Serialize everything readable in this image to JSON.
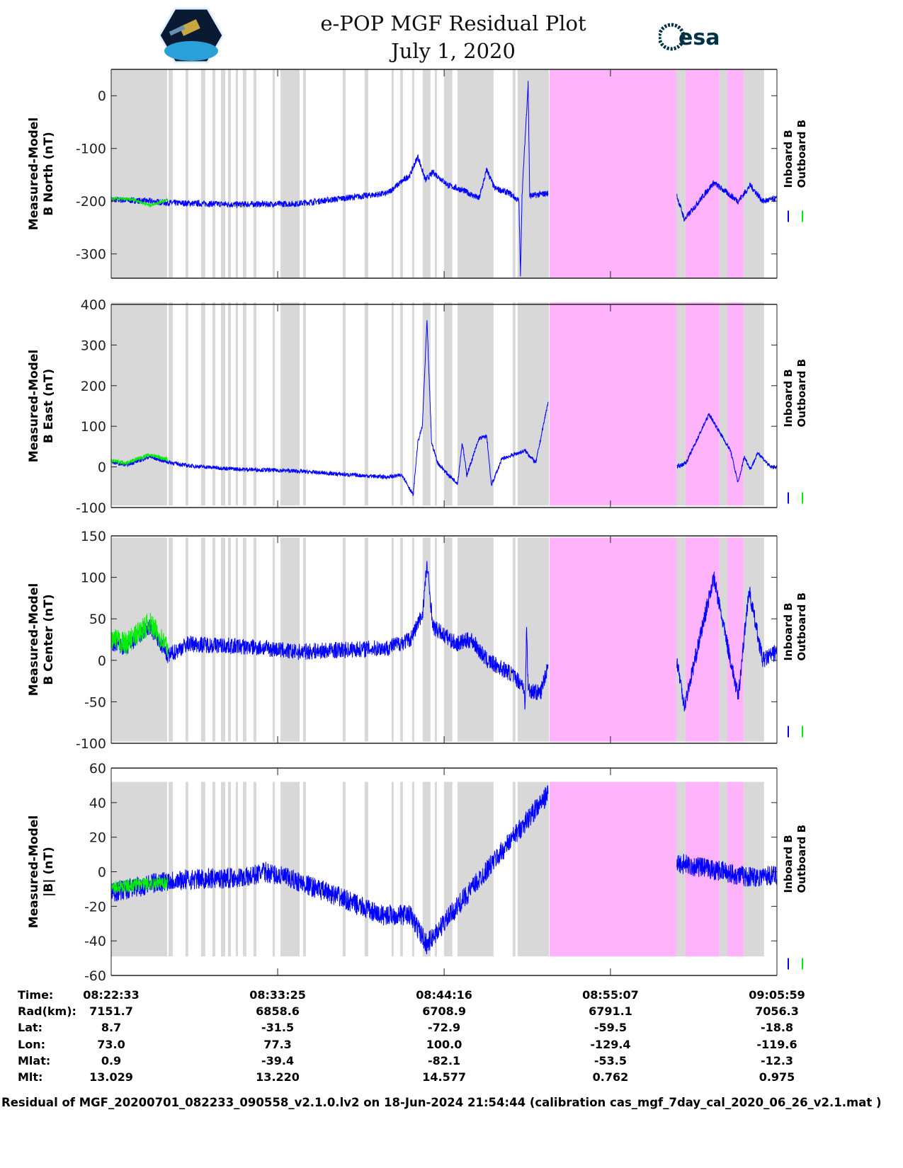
{
  "header": {
    "title_line1": "e-POP MGF Residual Plot",
    "title_line2": "July 1, 2020",
    "logo_left": "CASSIOPE",
    "logo_right": "esa"
  },
  "colors": {
    "inboard": "#0000ff",
    "outboard": "#00ee00",
    "gap_shade": "#d8d8d8",
    "pink_shade": "#ffb3fb"
  },
  "chart_data": {
    "type": "line",
    "x_unit": "minutes since 08:22:33",
    "xlim": [
      0,
      43.43
    ],
    "x_ticks": [
      0,
      10.86,
      21.72,
      32.57,
      43.43
    ],
    "legend": [
      "Inboard B",
      "Outboard B"
    ],
    "legend_placement": "right",
    "gray_intervals": [
      [
        0,
        3.65
      ],
      [
        3.74,
        4.02
      ],
      [
        4.85,
        5.03
      ],
      [
        5.86,
        6.14
      ],
      [
        6.6,
        6.79
      ],
      [
        7.16,
        7.44
      ],
      [
        7.62,
        7.81
      ],
      [
        8.13,
        8.27
      ],
      [
        8.59,
        8.82
      ],
      [
        9.28,
        9.47
      ],
      [
        10.53,
        10.67
      ],
      [
        11.04,
        12.29
      ],
      [
        12.52,
        12.7
      ],
      [
        15.1,
        15.29
      ],
      [
        16.53,
        16.77
      ],
      [
        18.29,
        18.43
      ],
      [
        18.85,
        19.03
      ],
      [
        19.63,
        19.77
      ],
      [
        20.32,
        20.83
      ],
      [
        21.11,
        21.25
      ],
      [
        21.71,
        22.26
      ],
      [
        22.59,
        24.94
      ],
      [
        26.19,
        26.37
      ],
      [
        26.51,
        28.55
      ],
      [
        36.86,
        37.46
      ],
      [
        39.68,
        40.18
      ],
      [
        41.25,
        42.59
      ]
    ],
    "pink_intervals": [
      [
        28.6,
        36.86
      ],
      [
        37.46,
        39.68
      ],
      [
        40.18,
        41.25
      ]
    ],
    "panels": [
      {
        "ylabel1": "Measured-Model",
        "ylabel2": "B North (nT)",
        "ylim": [
          -346,
          50
        ],
        "yticks": [
          0,
          -100,
          -200,
          -300
        ],
        "shade": [
          -346,
          50
        ],
        "inboard": {
          "noise": 6,
          "segments": [
            [
              [
                0,
                -197
              ],
              [
                2.5,
                -200
              ],
              [
                3.7,
                -203
              ],
              [
                8,
                -206
              ],
              [
                12,
                -205
              ],
              [
                15,
                -195
              ],
              [
                18,
                -185
              ],
              [
                19.5,
                -150
              ],
              [
                20,
                -115
              ],
              [
                20.5,
                -160
              ],
              [
                21,
                -145
              ],
              [
                22,
                -170
              ],
              [
                23,
                -180
              ],
              [
                24,
                -195
              ],
              [
                24.5,
                -140
              ],
              [
                25,
                -175
              ],
              [
                26,
                -185
              ],
              [
                26.6,
                -200
              ],
              [
                26.7,
                -345
              ],
              [
                26.8,
                -190
              ],
              [
                27.2,
                25
              ],
              [
                27.3,
                -190
              ],
              [
                28.5,
                -185
              ]
            ],
            [
              [
                36.9,
                -190
              ],
              [
                37.4,
                -235
              ],
              [
                39.3,
                -165
              ],
              [
                40.9,
                -200
              ],
              [
                41.7,
                -170
              ],
              [
                42.5,
                -200
              ],
              [
                43.43,
                -195
              ]
            ]
          ]
        },
        "outboard": {
          "noise": 3,
          "segments": [
            [
              [
                0,
                -195
              ],
              [
                1.5,
                -197
              ],
              [
                2.5,
                -208
              ],
              [
                3.7,
                -197
              ]
            ]
          ]
        }
      },
      {
        "ylabel1": "Measured-Model",
        "ylabel2": "B East (nT)",
        "ylim": [
          -100,
          400
        ],
        "yticks": [
          400,
          300,
          200,
          100,
          0,
          -100
        ],
        "shade": [
          -95,
          405
        ],
        "inboard": {
          "noise": 5,
          "segments": [
            [
              [
                0,
                12
              ],
              [
                1,
                5
              ],
              [
                2.5,
                25
              ],
              [
                3.7,
                12
              ],
              [
                5,
                3
              ],
              [
                8,
                -5
              ],
              [
                12,
                -10
              ],
              [
                15,
                -18
              ],
              [
                18,
                -25
              ],
              [
                19,
                -20
              ],
              [
                19.7,
                -70
              ],
              [
                20,
                60
              ],
              [
                20.3,
                100
              ],
              [
                20.6,
                360
              ],
              [
                20.9,
                60
              ],
              [
                21.3,
                10
              ],
              [
                22,
                -20
              ],
              [
                22.6,
                -40
              ],
              [
                22.9,
                60
              ],
              [
                23.2,
                -20
              ],
              [
                24,
                70
              ],
              [
                24.5,
                75
              ],
              [
                24.8,
                -45
              ],
              [
                25.5,
                20
              ],
              [
                27,
                40
              ],
              [
                27.7,
                10
              ],
              [
                28.5,
                160
              ]
            ],
            [
              [
                36.9,
                0
              ],
              [
                37.5,
                10
              ],
              [
                39,
                130
              ],
              [
                40.4,
                40
              ],
              [
                40.9,
                -40
              ],
              [
                41.3,
                25
              ],
              [
                41.7,
                -5
              ],
              [
                42.2,
                35
              ],
              [
                43,
                0
              ],
              [
                43.43,
                0
              ]
            ]
          ]
        },
        "outboard": {
          "noise": 5,
          "segments": [
            [
              [
                0,
                15
              ],
              [
                1,
                10
              ],
              [
                2.5,
                30
              ],
              [
                3.7,
                18
              ]
            ]
          ]
        }
      },
      {
        "ylabel1": "Measured-Model",
        "ylabel2": "B Center (nT)",
        "ylim": [
          -100,
          150
        ],
        "yticks": [
          150,
          100,
          50,
          0,
          -50,
          -100
        ],
        "shade": [
          -98,
          148
        ],
        "inboard": {
          "noise": 10,
          "segments": [
            [
              [
                0,
                20
              ],
              [
                1,
                15
              ],
              [
                2.5,
                40
              ],
              [
                3.7,
                5
              ],
              [
                5,
                20
              ],
              [
                10,
                15
              ],
              [
                12,
                10
              ],
              [
                18,
                15
              ],
              [
                19.5,
                25
              ],
              [
                20.3,
                55
              ],
              [
                20.6,
                115
              ],
              [
                21,
                40
              ],
              [
                22.5,
                20
              ],
              [
                23.5,
                25
              ],
              [
                24.5,
                0
              ],
              [
                26,
                -15
              ],
              [
                26.9,
                -30
              ],
              [
                27,
                -60
              ],
              [
                27.1,
                40
              ],
              [
                27.2,
                -35
              ],
              [
                28,
                -40
              ],
              [
                28.5,
                -5
              ]
            ],
            [
              [
                36.9,
                0
              ],
              [
                37.4,
                -55
              ],
              [
                39.3,
                100
              ],
              [
                40.9,
                -45
              ],
              [
                41.6,
                85
              ],
              [
                42.5,
                0
              ],
              [
                43.43,
                10
              ]
            ]
          ]
        },
        "outboard": {
          "noise": 14,
          "segments": [
            [
              [
                0,
                25
              ],
              [
                1,
                20
              ],
              [
                2.5,
                45
              ],
              [
                3.7,
                15
              ]
            ]
          ]
        }
      },
      {
        "ylabel1": "Measured-Model",
        "ylabel2": "|B| (nT)",
        "ylim": [
          -60,
          60
        ],
        "yticks": [
          60,
          40,
          20,
          0,
          -20,
          -40,
          -60
        ],
        "shade": [
          -49,
          52
        ],
        "inboard": {
          "noise": 6,
          "segments": [
            [
              [
                0,
                -12
              ],
              [
                3.7,
                -5
              ],
              [
                9,
                -3
              ],
              [
                10,
                0
              ],
              [
                12,
                -5
              ],
              [
                15,
                -15
              ],
              [
                17.5,
                -25
              ],
              [
                19.5,
                -25
              ],
              [
                20.6,
                -42
              ],
              [
                21.5,
                -32
              ],
              [
                28.5,
                45
              ]
            ],
            [
              [
                36.9,
                5
              ],
              [
                40,
                0
              ],
              [
                41.5,
                -3
              ],
              [
                43.43,
                -2
              ]
            ]
          ]
        },
        "outboard": {
          "noise": 4,
          "segments": [
            [
              [
                0,
                -9
              ],
              [
                3.7,
                -6
              ]
            ]
          ]
        }
      }
    ]
  },
  "table": {
    "labels": [
      "Time:",
      "Rad(km):",
      "Lat:",
      "Lon:",
      "Mlat:",
      "Mlt:"
    ],
    "columns": [
      [
        "08:22:33",
        "7151.7",
        "8.7",
        "73.0",
        "0.9",
        "13.029"
      ],
      [
        "08:33:25",
        "6858.6",
        "-31.5",
        "77.3",
        "-39.4",
        "13.220"
      ],
      [
        "08:44:16",
        "6708.9",
        "-72.9",
        "100.0",
        "-82.1",
        "14.577"
      ],
      [
        "08:55:07",
        "6791.1",
        "-59.5",
        "-129.4",
        "-53.5",
        "0.762"
      ],
      [
        "09:05:59",
        "7056.3",
        "-18.8",
        "-119.6",
        "-12.3",
        "0.975"
      ]
    ]
  },
  "footer": "Residual of MGF_20200701_082233_090558_v2.1.0.lv2 on 18-Jun-2024 21:54:44 (calibration cas_mgf_7day_cal_2020_06_26_v2.1.mat )"
}
